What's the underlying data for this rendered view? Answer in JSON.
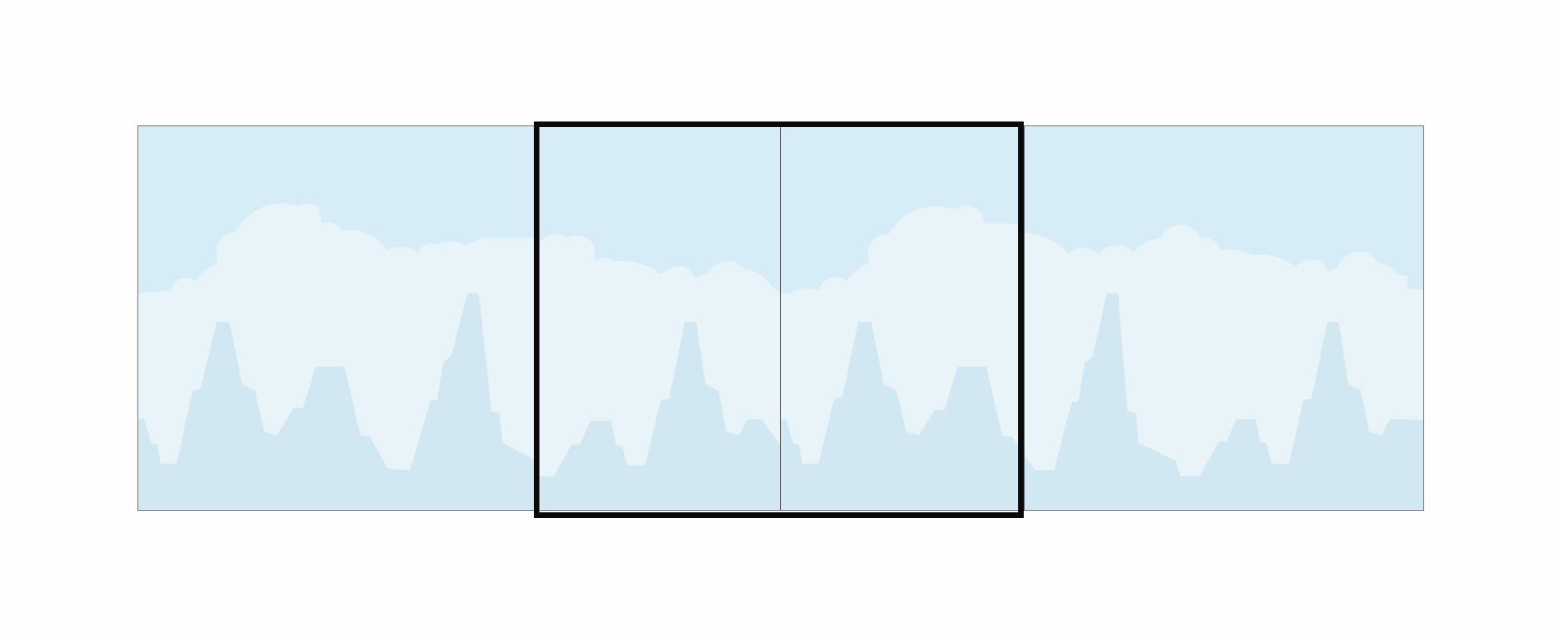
{
  "scene": {
    "sky_color": "#d6ecf6",
    "cloud_color": "#e9f4f9",
    "mountain_color": "#d1e8f2",
    "frame_color": "#0a0a0a",
    "border_color": "#6d6d6d",
    "tile_count": 4
  },
  "viewport": {
    "kind": "camera-viewport",
    "covers_tiles": [
      2,
      3
    ]
  }
}
